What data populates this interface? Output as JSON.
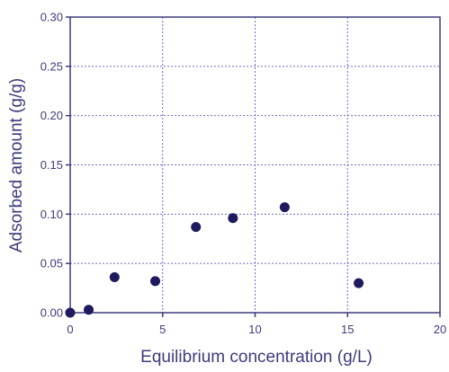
{
  "chart_data": {
    "type": "scatter",
    "title": "",
    "xlabel": "Equilibrium concentration (g/L)",
    "ylabel": "Adsorbed amount (g/g)",
    "xlim": [
      0,
      20
    ],
    "ylim": [
      0,
      0.3
    ],
    "x_ticks": [
      "0",
      "5",
      "10",
      "15",
      "20"
    ],
    "y_ticks": [
      "0.00",
      "0.05",
      "0.10",
      "0.15",
      "0.20",
      "0.25",
      "0.30"
    ],
    "grid": true,
    "series": [
      {
        "x": [
          0.0,
          1.0,
          2.4,
          4.6,
          6.8,
          8.8,
          11.6,
          15.6
        ],
        "y": [
          0.0,
          0.003,
          0.036,
          0.032,
          0.087,
          0.096,
          0.107,
          0.03
        ]
      }
    ]
  },
  "colors": {
    "axis": "#3d3c7d",
    "grid": "#6b6bcf",
    "marker": "#1f1a5e",
    "text": "#3d3c7d"
  }
}
